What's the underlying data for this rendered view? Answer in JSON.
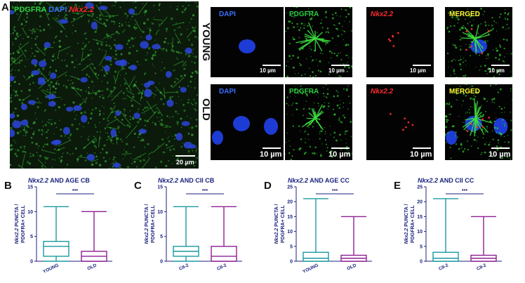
{
  "panel_a": {
    "letter": "A",
    "overview": {
      "channel_labels": [
        {
          "text": "PDGFRA",
          "color": "#2ecc40",
          "italic": false
        },
        {
          "text": "DAPI",
          "color": "#3a6fff",
          "italic": false
        },
        {
          "text": "Nkx2.2",
          "color": "#ff2a2a",
          "italic": true
        }
      ],
      "scale": "20 µm"
    },
    "rows": [
      {
        "label": "YOUNG"
      },
      {
        "label": "OLD"
      }
    ],
    "channels": [
      {
        "name": "DAPI",
        "color": "#3a6fff",
        "italic": false
      },
      {
        "name": "PDGFRA",
        "color": "#2ecc40",
        "italic": false
      },
      {
        "name": "Nkx2.2",
        "color": "#ff2a2a",
        "italic": true
      },
      {
        "name": "MERGED",
        "color": "#ffff33",
        "italic": false
      }
    ],
    "scale": "10 µm"
  },
  "chart_data": [
    {
      "letter": "B",
      "type": "boxplot",
      "title_gene": "Nkx2.2",
      "title_rest": "AND AGE CB",
      "ylabel_gene": "Nkx2.2",
      "ylabel_rest": "PUNCTA /",
      "ylabel_line2": "PDGFRA+ CELL",
      "ylim": [
        0,
        15
      ],
      "yticks": [
        0,
        5,
        10,
        15
      ],
      "significance": "***",
      "categories": [
        "YOUNG",
        "OLD"
      ],
      "boxes": [
        {
          "color": "#1a9aa0",
          "min": 0,
          "q1": 1,
          "median": 3,
          "q3": 4,
          "max": 11
        },
        {
          "color": "#8e1f93",
          "min": 0,
          "q1": 0,
          "median": 1,
          "q3": 2,
          "max": 10
        }
      ]
    },
    {
      "letter": "C",
      "type": "boxplot",
      "title_gene": "Nkx2.2",
      "title_rest": "AND CII CB",
      "ylabel_gene": "Nkx2.2",
      "ylabel_rest": "PUNCTA /",
      "ylabel_line2": "PDGFRA+ CELL",
      "ylim": [
        0,
        15
      ],
      "yticks": [
        0,
        5,
        10,
        15
      ],
      "significance": "***",
      "categories": [
        "CII-2",
        "CII-2"
      ],
      "boxes": [
        {
          "color": "#1a9aa0",
          "min": 0,
          "q1": 1,
          "median": 2,
          "q3": 3,
          "max": 11
        },
        {
          "color": "#8e1f93",
          "min": 0,
          "q1": 0,
          "median": 1,
          "q3": 3,
          "max": 11
        }
      ]
    },
    {
      "letter": "D",
      "type": "boxplot",
      "title_gene": "Nkx2.2",
      "title_rest": "AND AGE CC",
      "ylabel_gene": "Nkx2.2",
      "ylabel_rest": "PUNCTA /",
      "ylabel_line2": "PDGFRA+ CELL",
      "ylim": [
        0,
        25
      ],
      "yticks": [
        0,
        5,
        10,
        15,
        20,
        25
      ],
      "significance": "***",
      "categories": [
        "YOUNG",
        "OLD"
      ],
      "boxes": [
        {
          "color": "#1a9aa0",
          "min": 0,
          "q1": 0,
          "median": 1,
          "q3": 3,
          "max": 21
        },
        {
          "color": "#8e1f93",
          "min": 0,
          "q1": 0,
          "median": 1,
          "q3": 2,
          "max": 15
        }
      ]
    },
    {
      "letter": "E",
      "type": "boxplot",
      "title_gene": "Nkx2.2",
      "title_rest": "AND CII CC",
      "ylabel_gene": "Nkx2.2",
      "ylabel_rest": "PUNCTA /",
      "ylabel_line2": "PDGFRA+ CELL",
      "ylim": [
        0,
        25
      ],
      "yticks": [
        0,
        5,
        10,
        15,
        20,
        25
      ],
      "significance": "***",
      "categories": [
        "CII-2",
        "CII-2"
      ],
      "boxes": [
        {
          "color": "#1a9aa0",
          "min": 0,
          "q1": 0,
          "median": 1,
          "q3": 3,
          "max": 21
        },
        {
          "color": "#8e1f93",
          "min": 0,
          "q1": 0,
          "median": 1,
          "q3": 2,
          "max": 15
        }
      ]
    }
  ]
}
